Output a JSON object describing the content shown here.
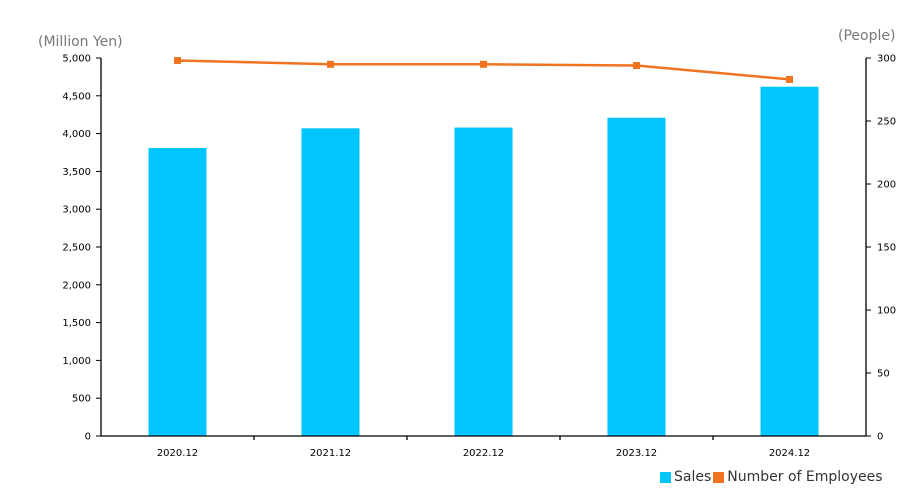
{
  "chart_data": {
    "type": "bar",
    "categories": [
      "2020.12",
      "2021.12",
      "2022.12",
      "2023.12",
      "2024.12"
    ],
    "series": [
      {
        "name": "Sales",
        "kind": "bar",
        "axis": "left",
        "color": "#00c5ff",
        "values": [
          3810,
          4070,
          4080,
          4210,
          4620
        ]
      },
      {
        "name": "Number of Employees",
        "kind": "line",
        "axis": "right",
        "color": "#f07320",
        "values": [
          298,
          295,
          295,
          294,
          283
        ]
      }
    ],
    "left_axis": {
      "unit_label": "(Million Yen)",
      "range": [
        0,
        5000
      ],
      "ticks": [
        "0",
        "500",
        "1,000",
        "1,500",
        "2,000",
        "2,500",
        "3,000",
        "3,500",
        "4,000",
        "4,500",
        "5,000"
      ]
    },
    "right_axis": {
      "unit_label": "(People)",
      "range": [
        0,
        300
      ],
      "ticks": [
        "0",
        "50",
        "100",
        "150",
        "200",
        "250",
        "300"
      ]
    },
    "legend": {
      "position": "bottom-right",
      "items": [
        "Sales",
        "Number of Employees"
      ]
    },
    "grid": false
  }
}
